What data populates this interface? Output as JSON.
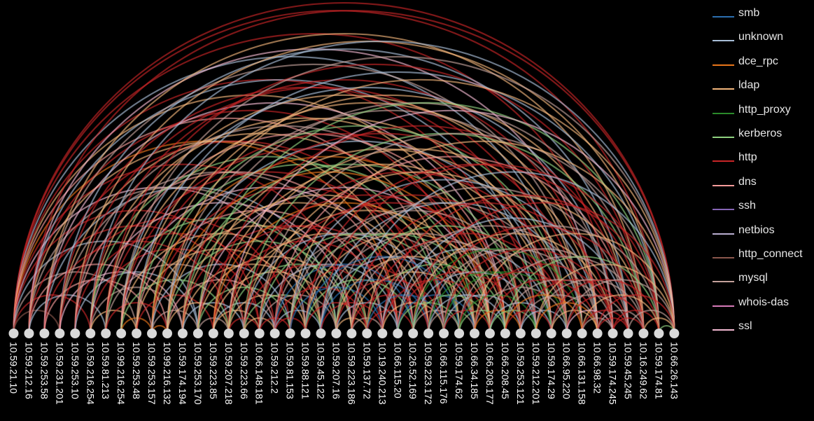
{
  "nodes": [
    "10.59.21.10",
    "10.59.212.16",
    "10.59.253.58",
    "10.59.231.201",
    "10.59.253.10",
    "10.59.216.254",
    "10.59.81.213",
    "10.99.216.254",
    "10.59.253.48",
    "10.59.253.157",
    "10.99.216.132",
    "10.59.174.194",
    "10.59.253.170",
    "10.59.223.85",
    "10.59.207.218",
    "10.59.223.66",
    "10.66.148.181",
    "10.59.212.2",
    "10.59.81.153",
    "10.59.88.121",
    "10.59.45.122",
    "10.59.207.16",
    "10.59.223.186",
    "10.59.137.72",
    "10.19.240.213",
    "10.66.115.20",
    "10.26.52.169",
    "10.59.223.172",
    "10.66.115.176",
    "10.59.174.62",
    "10.66.34.185",
    "10.66.208.177",
    "10.66.208.45",
    "10.59.253.121",
    "10.59.212.201",
    "10.59.174.29",
    "10.66.95.220",
    "10.66.131.158",
    "10.66.98.32",
    "10.59.174.245",
    "10.59.45.245",
    "10.16.249.62",
    "10.59.174.81",
    "10.66.26.143"
  ],
  "protocols": [
    {
      "name": "smb",
      "color": "#2c6fb0"
    },
    {
      "name": "unknown",
      "color": "#a9bfd8"
    },
    {
      "name": "dce_rpc",
      "color": "#e8751a"
    },
    {
      "name": "ldap",
      "color": "#f2b57a"
    },
    {
      "name": "http_proxy",
      "color": "#2a8a2a"
    },
    {
      "name": "kerberos",
      "color": "#8fd17f"
    },
    {
      "name": "http",
      "color": "#c82527"
    },
    {
      "name": "dns",
      "color": "#f59b9a"
    },
    {
      "name": "ssh",
      "color": "#8665b5"
    },
    {
      "name": "netbios",
      "color": "#b9aed0"
    },
    {
      "name": "http_connect",
      "color": "#8a574c"
    },
    {
      "name": "mysql",
      "color": "#c4a19b"
    },
    {
      "name": "whois-das",
      "color": "#d67ab8"
    },
    {
      "name": "ssl",
      "color": "#f2b8d0"
    }
  ],
  "links": [
    [
      0,
      43,
      6
    ],
    [
      0,
      42,
      6
    ],
    [
      0,
      39,
      6
    ],
    [
      0,
      36,
      1
    ],
    [
      0,
      33,
      6
    ],
    [
      0,
      31,
      3
    ],
    [
      0,
      28,
      7
    ],
    [
      0,
      25,
      2
    ],
    [
      0,
      22,
      6
    ],
    [
      0,
      19,
      13
    ],
    [
      0,
      16,
      6
    ],
    [
      0,
      12,
      1
    ],
    [
      0,
      8,
      11
    ],
    [
      0,
      5,
      6
    ],
    [
      0,
      3,
      10
    ],
    [
      1,
      43,
      6
    ],
    [
      1,
      38,
      13
    ],
    [
      1,
      34,
      1
    ],
    [
      1,
      30,
      6
    ],
    [
      1,
      26,
      3
    ],
    [
      1,
      20,
      11
    ],
    [
      1,
      15,
      6
    ],
    [
      1,
      10,
      7
    ],
    [
      1,
      6,
      1
    ],
    [
      2,
      41,
      3
    ],
    [
      2,
      37,
      11
    ],
    [
      2,
      32,
      13
    ],
    [
      2,
      27,
      6
    ],
    [
      2,
      21,
      1
    ],
    [
      2,
      14,
      6
    ],
    [
      2,
      9,
      7
    ],
    [
      3,
      40,
      1
    ],
    [
      3,
      35,
      6
    ],
    [
      3,
      29,
      3
    ],
    [
      3,
      24,
      11
    ],
    [
      3,
      18,
      6
    ],
    [
      3,
      11,
      13
    ],
    [
      4,
      42,
      3
    ],
    [
      4,
      36,
      6
    ],
    [
      4,
      31,
      11
    ],
    [
      4,
      25,
      7
    ],
    [
      4,
      17,
      6
    ],
    [
      4,
      12,
      1
    ],
    [
      5,
      43,
      1
    ],
    [
      5,
      38,
      6
    ],
    [
      5,
      33,
      3
    ],
    [
      5,
      28,
      5
    ],
    [
      5,
      22,
      13
    ],
    [
      5,
      16,
      6
    ],
    [
      5,
      11,
      11
    ],
    [
      5,
      8,
      3
    ],
    [
      6,
      41,
      6
    ],
    [
      6,
      37,
      3
    ],
    [
      6,
      32,
      7
    ],
    [
      6,
      27,
      6
    ],
    [
      6,
      21,
      5
    ],
    [
      6,
      15,
      11
    ],
    [
      6,
      10,
      6
    ],
    [
      7,
      43,
      11
    ],
    [
      7,
      39,
      1
    ],
    [
      7,
      35,
      3
    ],
    [
      7,
      31,
      6
    ],
    [
      7,
      26,
      13
    ],
    [
      7,
      20,
      3
    ],
    [
      7,
      14,
      5
    ],
    [
      7,
      9,
      2
    ],
    [
      8,
      42,
      1
    ],
    [
      8,
      38,
      3
    ],
    [
      8,
      34,
      6
    ],
    [
      8,
      30,
      5
    ],
    [
      8,
      24,
      7
    ],
    [
      8,
      19,
      3
    ],
    [
      8,
      13,
      6
    ],
    [
      9,
      40,
      3
    ],
    [
      9,
      36,
      5
    ],
    [
      9,
      32,
      2
    ],
    [
      9,
      28,
      6
    ],
    [
      9,
      23,
      3
    ],
    [
      9,
      18,
      1
    ],
    [
      9,
      12,
      11
    ],
    [
      9,
      10,
      2
    ],
    [
      10,
      43,
      3
    ],
    [
      10,
      39,
      11
    ],
    [
      10,
      35,
      1
    ],
    [
      10,
      31,
      2
    ],
    [
      10,
      27,
      3
    ],
    [
      10,
      22,
      5
    ],
    [
      10,
      17,
      7
    ],
    [
      10,
      14,
      3
    ],
    [
      11,
      41,
      11
    ],
    [
      11,
      37,
      6
    ],
    [
      11,
      33,
      5
    ],
    [
      11,
      29,
      3
    ],
    [
      11,
      25,
      6
    ],
    [
      11,
      20,
      3
    ],
    [
      11,
      15,
      1
    ],
    [
      12,
      42,
      5
    ],
    [
      12,
      36,
      3
    ],
    [
      12,
      31,
      13
    ],
    [
      12,
      26,
      6
    ],
    [
      12,
      22,
      3
    ],
    [
      12,
      18,
      5
    ],
    [
      12,
      14,
      11
    ],
    [
      13,
      40,
      6
    ],
    [
      13,
      35,
      3
    ],
    [
      13,
      30,
      2
    ],
    [
      13,
      25,
      6
    ],
    [
      13,
      21,
      3
    ],
    [
      13,
      17,
      1
    ],
    [
      13,
      16,
      3
    ],
    [
      14,
      43,
      13
    ],
    [
      14,
      38,
      3
    ],
    [
      14,
      32,
      6
    ],
    [
      14,
      27,
      3
    ],
    [
      14,
      23,
      5
    ],
    [
      14,
      19,
      3
    ],
    [
      14,
      16,
      6
    ],
    [
      15,
      41,
      5
    ],
    [
      15,
      36,
      6
    ],
    [
      15,
      31,
      3
    ],
    [
      15,
      28,
      1
    ],
    [
      15,
      24,
      6
    ],
    [
      15,
      20,
      5
    ],
    [
      15,
      17,
      3
    ],
    [
      16,
      42,
      11
    ],
    [
      16,
      37,
      3
    ],
    [
      16,
      33,
      6
    ],
    [
      16,
      29,
      5
    ],
    [
      16,
      25,
      1
    ],
    [
      16,
      21,
      11
    ],
    [
      16,
      18,
      6
    ],
    [
      17,
      40,
      7
    ],
    [
      17,
      35,
      6
    ],
    [
      17,
      30,
      11
    ],
    [
      17,
      26,
      0
    ],
    [
      17,
      23,
      6
    ],
    [
      17,
      20,
      1
    ],
    [
      17,
      19,
      6
    ],
    [
      18,
      43,
      3
    ],
    [
      18,
      38,
      1
    ],
    [
      18,
      34,
      11
    ],
    [
      18,
      31,
      5
    ],
    [
      18,
      27,
      6
    ],
    [
      18,
      24,
      0
    ],
    [
      19,
      41,
      6
    ],
    [
      19,
      36,
      11
    ],
    [
      19,
      32,
      3
    ],
    [
      19,
      29,
      0
    ],
    [
      19,
      26,
      5
    ],
    [
      19,
      23,
      6
    ],
    [
      20,
      42,
      6
    ],
    [
      20,
      37,
      1
    ],
    [
      20,
      33,
      11
    ],
    [
      20,
      30,
      1
    ],
    [
      20,
      27,
      0
    ],
    [
      20,
      24,
      6
    ],
    [
      21,
      40,
      11
    ],
    [
      21,
      35,
      5
    ],
    [
      21,
      31,
      3
    ],
    [
      21,
      28,
      6
    ],
    [
      21,
      25,
      1
    ],
    [
      21,
      23,
      3
    ],
    [
      22,
      43,
      1
    ],
    [
      22,
      39,
      6
    ],
    [
      22,
      34,
      11
    ],
    [
      22,
      30,
      3
    ],
    [
      22,
      27,
      6
    ],
    [
      22,
      24,
      11
    ],
    [
      23,
      41,
      3
    ],
    [
      23,
      36,
      6
    ],
    [
      23,
      32,
      5
    ],
    [
      23,
      28,
      0
    ],
    [
      23,
      26,
      6
    ],
    [
      24,
      42,
      6
    ],
    [
      24,
      38,
      11
    ],
    [
      24,
      35,
      1
    ],
    [
      24,
      31,
      6
    ],
    [
      24,
      28,
      3
    ],
    [
      25,
      40,
      1
    ],
    [
      25,
      36,
      11
    ],
    [
      25,
      33,
      6
    ],
    [
      25,
      30,
      0
    ],
    [
      25,
      29,
      5
    ],
    [
      26,
      43,
      6
    ],
    [
      26,
      39,
      3
    ],
    [
      26,
      37,
      4
    ],
    [
      26,
      34,
      1
    ],
    [
      26,
      31,
      5
    ],
    [
      26,
      29,
      11
    ],
    [
      27,
      41,
      6
    ],
    [
      27,
      38,
      11
    ],
    [
      27,
      35,
      4
    ],
    [
      27,
      32,
      1
    ],
    [
      27,
      30,
      11
    ],
    [
      28,
      42,
      11
    ],
    [
      28,
      39,
      6
    ],
    [
      28,
      36,
      4
    ],
    [
      28,
      33,
      1
    ],
    [
      28,
      31,
      6
    ],
    [
      29,
      40,
      11
    ],
    [
      29,
      37,
      6
    ],
    [
      29,
      34,
      4
    ],
    [
      29,
      32,
      5
    ],
    [
      30,
      43,
      3
    ],
    [
      30,
      39,
      6
    ],
    [
      30,
      36,
      11
    ],
    [
      30,
      33,
      2
    ],
    [
      31,
      41,
      11
    ],
    [
      31,
      38,
      6
    ],
    [
      31,
      35,
      1
    ],
    [
      31,
      34,
      5
    ],
    [
      32,
      42,
      5
    ],
    [
      32,
      39,
      11
    ],
    [
      32,
      37,
      2
    ],
    [
      32,
      35,
      6
    ],
    [
      33,
      40,
      6
    ],
    [
      33,
      38,
      11
    ],
    [
      33,
      36,
      1
    ],
    [
      34,
      43,
      3
    ],
    [
      34,
      41,
      11
    ],
    [
      34,
      38,
      2
    ],
    [
      35,
      42,
      6
    ],
    [
      35,
      40,
      11
    ],
    [
      35,
      38,
      3
    ],
    [
      36,
      43,
      11
    ],
    [
      36,
      41,
      6
    ],
    [
      36,
      39,
      13
    ],
    [
      37,
      42,
      3
    ],
    [
      37,
      40,
      6
    ],
    [
      37,
      39,
      11
    ],
    [
      38,
      43,
      6
    ],
    [
      38,
      41,
      11
    ],
    [
      38,
      40,
      6
    ],
    [
      39,
      41,
      6
    ],
    [
      39,
      42,
      6
    ],
    [
      40,
      43,
      11
    ],
    [
      41,
      43,
      3
    ],
    [
      42,
      43,
      5
    ]
  ]
}
